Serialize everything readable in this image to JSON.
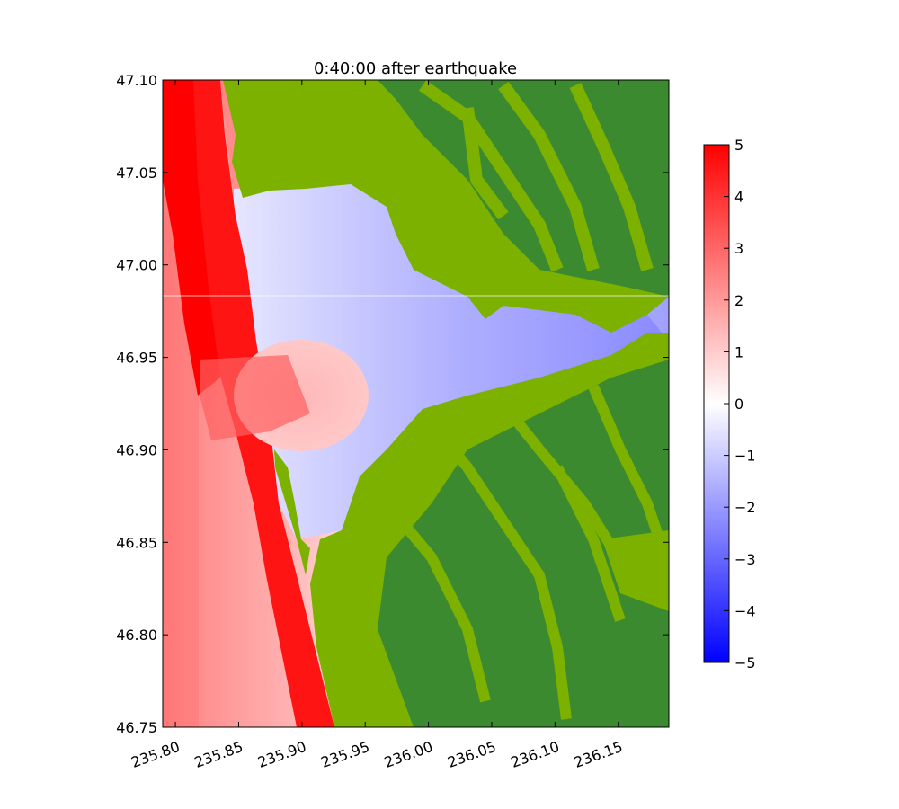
{
  "chart_data": {
    "type": "heatmap",
    "title": "0:40:00 after earthquake",
    "xlabel": "",
    "ylabel": "",
    "xlim": [
      235.79,
      236.19
    ],
    "ylim": [
      46.75,
      47.1
    ],
    "x_ticks": [
      235.8,
      235.85,
      235.9,
      235.95,
      236.0,
      236.05,
      236.1,
      236.15
    ],
    "x_tick_labels": [
      "235.80",
      "235.85",
      "235.90",
      "235.95",
      "236.00",
      "236.05",
      "236.10",
      "236.15"
    ],
    "y_ticks": [
      46.75,
      46.8,
      46.85,
      46.9,
      46.95,
      47.0,
      47.05,
      47.1
    ],
    "y_tick_labels": [
      "46.75",
      "46.80",
      "46.85",
      "46.90",
      "46.95",
      "47.00",
      "47.05",
      "47.10"
    ],
    "grid": false,
    "colorbar": {
      "range": [
        -5,
        5
      ],
      "ticks": [
        5,
        4,
        3,
        2,
        1,
        0,
        -1,
        -2,
        -3,
        -4,
        -5
      ],
      "tick_labels": [
        "5",
        "4",
        "3",
        "2",
        "1",
        "0",
        "−1",
        "−2",
        "−3",
        "−4",
        "−5"
      ],
      "colormap": [
        "#0000ff",
        "#ffffff",
        "#ff0000"
      ]
    },
    "land_colors": [
      "#7cb100",
      "#3c8a30"
    ],
    "water_colors": {
      "trough": "#8080ff",
      "crest": "#ff0000",
      "neutral": "#ffffff"
    }
  }
}
